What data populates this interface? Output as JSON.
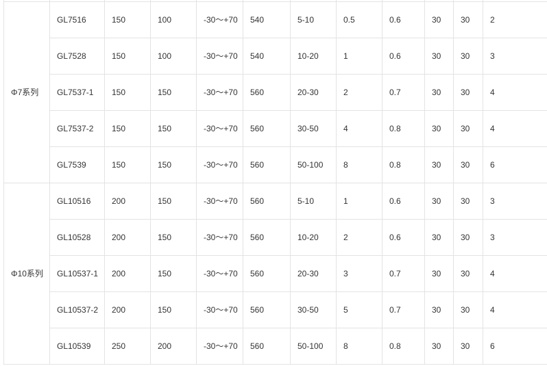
{
  "groups": [
    {
      "name": "Φ7系列",
      "rows": [
        [
          "GL7516",
          "150",
          "100",
          "-30～+70",
          "540",
          "5-10",
          "0.5",
          "0.6",
          "30",
          "30",
          "2"
        ],
        [
          "GL7528",
          "150",
          "100",
          "-30～+70",
          "540",
          "10-20",
          "1",
          "0.6",
          "30",
          "30",
          "3"
        ],
        [
          "GL7537-1",
          "150",
          "150",
          "-30～+70",
          "560",
          "20-30",
          "2",
          "0.7",
          "30",
          "30",
          "4"
        ],
        [
          "GL7537-2",
          "150",
          "150",
          "-30～+70",
          "560",
          "30-50",
          "4",
          "0.8",
          "30",
          "30",
          "4"
        ],
        [
          "GL7539",
          "150",
          "150",
          "-30～+70",
          "560",
          "50-100",
          "8",
          "0.8",
          "30",
          "30",
          "6"
        ]
      ]
    },
    {
      "name": "Φ10系列",
      "rows": [
        [
          "GL10516",
          "200",
          "150",
          "-30～+70",
          "560",
          "5-10",
          "1",
          "0.6",
          "30",
          "30",
          "3"
        ],
        [
          "GL10528",
          "200",
          "150",
          "-30～+70",
          "560",
          "10-20",
          "2",
          "0.6",
          "30",
          "30",
          "3"
        ],
        [
          "GL10537-1",
          "200",
          "150",
          "-30～+70",
          "560",
          "20-30",
          "3",
          "0.7",
          "30",
          "30",
          "4"
        ],
        [
          "GL10537-2",
          "200",
          "150",
          "-30～+70",
          "560",
          "30-50",
          "5",
          "0.7",
          "30",
          "30",
          "4"
        ],
        [
          "GL10539",
          "250",
          "200",
          "-30～+70",
          "560",
          "50-100",
          "8",
          "0.8",
          "30",
          "30",
          "6"
        ]
      ]
    }
  ]
}
